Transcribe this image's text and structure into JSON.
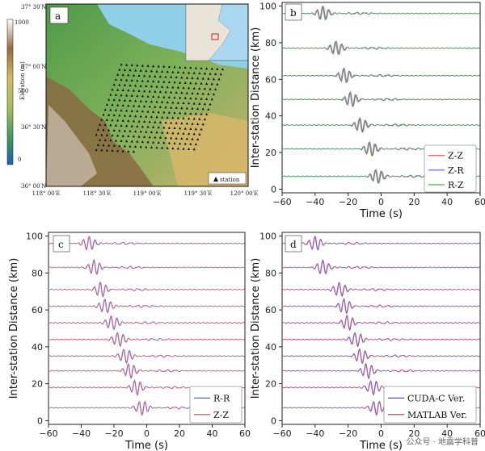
{
  "panels": {
    "a": {
      "label": "a",
      "colorbar": {
        "title": "Elevation (m)",
        "ticks": [
          "1000",
          "500",
          "0"
        ],
        "ticks_top": "1000"
      },
      "lat_labels": [
        "37° 30′N",
        "37° 00′N",
        "36° 30′N",
        "36° 00′N"
      ],
      "lon_labels": [
        "118° 00′E",
        "118° 30′E",
        "119° 00′E",
        "119° 30′E",
        "120° 00′E"
      ],
      "legend": "station",
      "stations": {
        "rows": 18,
        "cols": 20
      }
    },
    "b": {
      "label": "b",
      "legend": [
        "Z-Z",
        "Z-R",
        "R-Z"
      ]
    },
    "c": {
      "label": "c",
      "legend": [
        "R-R",
        "Z-Z"
      ]
    },
    "d": {
      "label": "d",
      "legend": [
        "CUDA-C Ver.",
        "MATLAB Ver."
      ]
    }
  },
  "colors": {
    "zz": "#e05050",
    "zr": "#5060e0",
    "rz": "#40a040",
    "rr": "#4a4ad8",
    "cuda": "#3a3ad0",
    "matlab": "#d04060"
  },
  "watermark": "公众号 · 地震学科普",
  "chart_data": [
    {
      "panel": "b",
      "type": "line",
      "xlabel": "Time (s)",
      "ylabel": "Inter-station Distance (km)",
      "xlim": [
        -60,
        60
      ],
      "ylim": [
        -2,
        102
      ],
      "xticks": [
        -60,
        -40,
        -20,
        0,
        20,
        40,
        60
      ],
      "yticks": [
        0,
        20,
        40,
        60,
        80,
        100
      ],
      "series": [
        {
          "name": "Z-Z",
          "color": "#e05050"
        },
        {
          "name": "Z-R",
          "color": "#5060e0"
        },
        {
          "name": "R-Z",
          "color": "#40a040"
        }
      ],
      "traces": [
        {
          "distance": 96,
          "arrival": -35
        },
        {
          "distance": 77,
          "arrival": -27
        },
        {
          "distance": 62,
          "arrival": -22
        },
        {
          "distance": 49,
          "arrival": -18
        },
        {
          "distance": 35,
          "arrival": -12
        },
        {
          "distance": 22,
          "arrival": -6
        },
        {
          "distance": 7,
          "arrival": -2
        }
      ]
    },
    {
      "panel": "c",
      "type": "line",
      "xlabel": "Time (s)",
      "ylabel": "Inter-station Distance (km)",
      "xlim": [
        -60,
        60
      ],
      "ylim": [
        -2,
        102
      ],
      "xticks": [
        -60,
        -40,
        -20,
        0,
        20,
        40,
        60
      ],
      "yticks": [
        0,
        20,
        40,
        60,
        80,
        100
      ],
      "series": [
        {
          "name": "R-R",
          "color": "#4a4ad8"
        },
        {
          "name": "Z-Z",
          "color": "#e05050"
        }
      ],
      "traces": [
        {
          "distance": 96,
          "arrival": -35
        },
        {
          "distance": 83,
          "arrival": -32
        },
        {
          "distance": 71,
          "arrival": -28
        },
        {
          "distance": 62,
          "arrival": -25
        },
        {
          "distance": 53,
          "arrival": -21
        },
        {
          "distance": 44,
          "arrival": -17
        },
        {
          "distance": 35,
          "arrival": -13
        },
        {
          "distance": 27,
          "arrival": -10
        },
        {
          "distance": 18,
          "arrival": -6
        },
        {
          "distance": 7,
          "arrival": -3
        }
      ]
    },
    {
      "panel": "d",
      "type": "line",
      "xlabel": "Time (s)",
      "ylabel": "Inter-station Distance (km)",
      "xlim": [
        -60,
        60
      ],
      "ylim": [
        -2,
        102
      ],
      "xticks": [
        -60,
        -40,
        -20,
        0,
        20,
        40,
        60
      ],
      "yticks": [
        0,
        20,
        40,
        60,
        80,
        100
      ],
      "series": [
        {
          "name": "CUDA-C Ver.",
          "color": "#3a3ad0"
        },
        {
          "name": "MATLAB Ver.",
          "color": "#d04060"
        }
      ],
      "traces": [
        {
          "distance": 96,
          "arrival": -40
        },
        {
          "distance": 83,
          "arrival": -35
        },
        {
          "distance": 71,
          "arrival": -25
        },
        {
          "distance": 62,
          "arrival": -22
        },
        {
          "distance": 53,
          "arrival": -20
        },
        {
          "distance": 44,
          "arrival": -15
        },
        {
          "distance": 35,
          "arrival": -12
        },
        {
          "distance": 27,
          "arrival": -8
        },
        {
          "distance": 18,
          "arrival": -5
        },
        {
          "distance": 7,
          "arrival": -3
        }
      ]
    }
  ]
}
